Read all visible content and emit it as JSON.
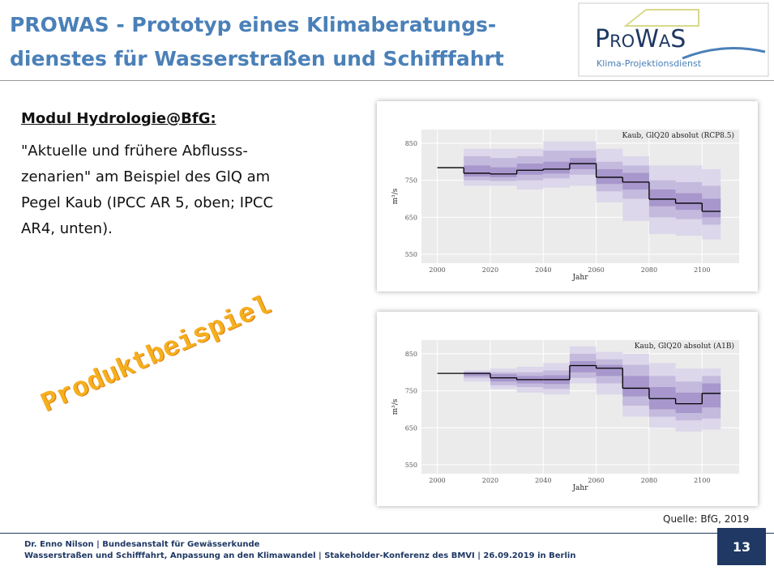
{
  "header": {
    "title_lines": [
      "PROWAS - Prototyp eines Klimaberatungs-",
      "dienstes für Wasserstraßen und Schifffahrt"
    ],
    "logo_name": "ProWaS",
    "logo_subtitle": "Klima-Projektionsdienst"
  },
  "body": {
    "heading": "Modul Hydrologie@BfG:",
    "text_lines": [
      "\"Aktuelle und frühere Abflusss-",
      "zenarien\" am Beispiel des GlQ am",
      "Pegel Kaub (IPCC AR 5, oben; IPCC",
      "AR4, unten)."
    ],
    "stamp": "Produktbeispiel",
    "source": "Quelle: BfG, 2019"
  },
  "charts": [
    {
      "type": "step",
      "title": "Kaub, GlQ20 absolut (RCP8.5)",
      "xlabel": "Jahr",
      "ylabel": "m³/s",
      "x": [
        2000,
        2010,
        2020,
        2030,
        2040,
        2050,
        2060,
        2070,
        2080,
        2090,
        2100,
        2107
      ],
      "values": [
        784,
        769,
        767,
        777,
        780,
        795,
        758,
        745,
        699,
        688,
        666
      ],
      "color": "#000000",
      "bands": [
        {
          "color": "#dcd7ea",
          "low": [
            null,
            735,
            735,
            725,
            730,
            735,
            690,
            640,
            605,
            600,
            590
          ],
          "high": [
            null,
            835,
            835,
            835,
            855,
            855,
            835,
            815,
            790,
            790,
            780
          ]
        },
        {
          "color": "#c4badd",
          "low": [
            null,
            750,
            748,
            750,
            755,
            765,
            720,
            700,
            650,
            645,
            630
          ],
          "high": [
            null,
            815,
            810,
            815,
            830,
            830,
            800,
            790,
            750,
            745,
            735
          ]
        },
        {
          "color": "#a797cc",
          "low": [
            null,
            760,
            758,
            765,
            768,
            780,
            740,
            725,
            680,
            670,
            650
          ],
          "high": [
            null,
            790,
            785,
            795,
            800,
            810,
            780,
            770,
            725,
            715,
            700
          ]
        }
      ],
      "xlim": [
        1994,
        2114
      ],
      "ylim": [
        526,
        887
      ],
      "xticks": [
        2000,
        2020,
        2040,
        2060,
        2080,
        2100
      ],
      "yticks": [
        550,
        650,
        750,
        850
      ],
      "grid": true
    },
    {
      "type": "step",
      "title": "Kaub, GlQ20 absolut (A1B)",
      "xlabel": "Jahr",
      "ylabel": "m³/s",
      "x": [
        2000,
        2010,
        2020,
        2030,
        2040,
        2050,
        2060,
        2070,
        2080,
        2090,
        2100,
        2107
      ],
      "values": [
        797,
        797,
        785,
        780,
        780,
        818,
        811,
        757,
        729,
        715,
        743
      ],
      "color": "#000000",
      "bands": [
        {
          "color": "#dcd7ea",
          "low": [
            null,
            775,
            755,
            745,
            740,
            770,
            740,
            680,
            650,
            640,
            645
          ],
          "high": [
            null,
            805,
            810,
            815,
            825,
            870,
            855,
            850,
            825,
            810,
            810
          ]
        },
        {
          "color": "#c4badd",
          "low": [
            null,
            785,
            765,
            760,
            755,
            785,
            770,
            710,
            680,
            670,
            675
          ],
          "high": [
            null,
            800,
            800,
            800,
            805,
            850,
            835,
            820,
            790,
            775,
            790
          ]
        },
        {
          "color": "#a797cc",
          "low": [
            null,
            790,
            775,
            770,
            768,
            800,
            790,
            735,
            700,
            690,
            705
          ],
          "high": [
            null,
            800,
            795,
            790,
            792,
            830,
            820,
            790,
            760,
            745,
            770
          ]
        }
      ],
      "xlim": [
        1994,
        2114
      ],
      "ylim": [
        526,
        887
      ],
      "xticks": [
        2000,
        2020,
        2040,
        2060,
        2080,
        2100
      ],
      "yticks": [
        550,
        650,
        750,
        850
      ],
      "grid": true
    }
  ],
  "footer": {
    "lines": [
      "Dr. Enno Nilson  |  Bundesanstalt für Gewässerkunde",
      "Wasserstraßen und Schifffahrt, Anpassung an den Klimawandel | Stakeholder-Konferenz des BMVI | 26.09.2019 in Berlin"
    ],
    "page": "13"
  }
}
